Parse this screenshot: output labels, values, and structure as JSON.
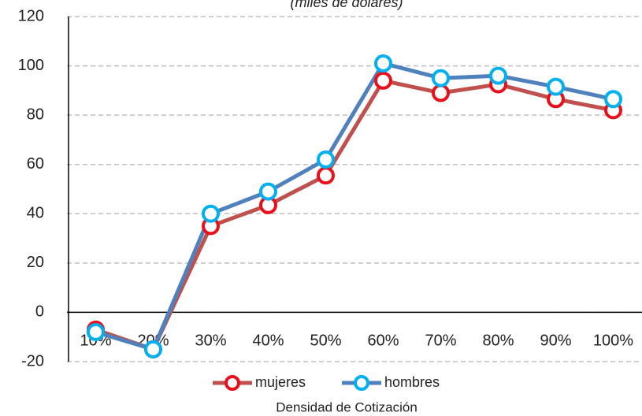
{
  "chart_data": {
    "type": "line",
    "subtitle": "(miles de dólares)",
    "x_label": "Densidad de Cotización",
    "categories": [
      "10%",
      "20%",
      "30%",
      "40%",
      "50%",
      "60%",
      "70%",
      "80%",
      "90%",
      "100%"
    ],
    "series": [
      {
        "name": "mujeres",
        "color": "#c0504d",
        "marker_color": "#e8101a",
        "values": [
          -7,
          -15,
          35,
          43.5,
          55.5,
          94,
          89,
          92.5,
          86.5,
          82
        ]
      },
      {
        "name": "hombres",
        "color": "#4f81bd",
        "marker_color": "#00b0f0",
        "values": [
          -8,
          -15,
          40,
          49,
          62,
          101,
          95,
          96,
          91.5,
          86.5
        ]
      }
    ],
    "ylim": [
      -20,
      120
    ],
    "yticks": [
      -20,
      0,
      20,
      40,
      60,
      80,
      100,
      120
    ],
    "grid": true,
    "legend": "bottom"
  }
}
